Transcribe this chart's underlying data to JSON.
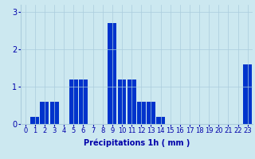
{
  "hours": [
    0,
    1,
    2,
    3,
    4,
    5,
    6,
    7,
    8,
    9,
    10,
    11,
    12,
    13,
    14,
    15,
    16,
    17,
    18,
    19,
    20,
    21,
    22,
    23
  ],
  "values": [
    0,
    0.2,
    0.6,
    0.6,
    0,
    1.2,
    1.2,
    0,
    0,
    2.7,
    1.2,
    1.2,
    0.6,
    0.6,
    0.2,
    0,
    0,
    0,
    0,
    0,
    0,
    0,
    0,
    1.6
  ],
  "bar_color": "#0033cc",
  "background_color": "#cce8f0",
  "grid_color": "#aaccdd",
  "xlabel": "Précipitations 1h ( mm )",
  "xlabel_color": "#0000aa",
  "tick_color": "#0000aa",
  "ylim": [
    0,
    3.2
  ],
  "yticks": [
    0,
    1,
    2,
    3
  ],
  "xlabel_fontsize": 7,
  "tick_fontsize": 6,
  "fig_width": 3.2,
  "fig_height": 2.0,
  "dpi": 100
}
